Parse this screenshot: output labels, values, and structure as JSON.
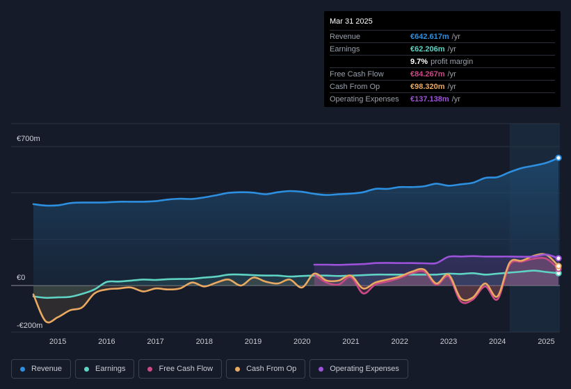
{
  "chart_data": {
    "type": "area",
    "y_unit": "m",
    "ylim": [
      -250,
      750
    ],
    "y_ticks": [
      {
        "value": 700,
        "label": "€700m"
      },
      {
        "value": 0,
        "label": "€0"
      },
      {
        "value": -200,
        "label": "-€200m"
      }
    ],
    "x_ticks": [
      2015,
      2016,
      2017,
      2018,
      2019,
      2020,
      2021,
      2022,
      2023,
      2024,
      2025
    ],
    "xlim": [
      2014.5,
      2025.25
    ],
    "forecast_start": 2024.25,
    "series": [
      {
        "name": "Revenue",
        "color": "#2d8fe0",
        "points": [
          [
            2014.5,
            410
          ],
          [
            2014.75,
            403
          ],
          [
            2015,
            404
          ],
          [
            2015.25,
            415
          ],
          [
            2015.5,
            418
          ],
          [
            2015.75,
            418
          ],
          [
            2016,
            419
          ],
          [
            2016.25,
            422
          ],
          [
            2016.5,
            422
          ],
          [
            2016.75,
            422
          ],
          [
            2017,
            425
          ],
          [
            2017.25,
            433
          ],
          [
            2017.5,
            437
          ],
          [
            2017.75,
            436
          ],
          [
            2018,
            444
          ],
          [
            2018.25,
            455
          ],
          [
            2018.5,
            467
          ],
          [
            2018.75,
            470
          ],
          [
            2019,
            468
          ],
          [
            2019.25,
            460
          ],
          [
            2019.5,
            470
          ],
          [
            2019.75,
            476
          ],
          [
            2020,
            472
          ],
          [
            2020.25,
            462
          ],
          [
            2020.5,
            456
          ],
          [
            2020.75,
            460
          ],
          [
            2021,
            463
          ],
          [
            2021.25,
            470
          ],
          [
            2021.5,
            487
          ],
          [
            2021.75,
            487
          ],
          [
            2022,
            496
          ],
          [
            2022.25,
            496
          ],
          [
            2022.5,
            500
          ],
          [
            2022.75,
            513
          ],
          [
            2023,
            503
          ],
          [
            2023.25,
            510
          ],
          [
            2023.5,
            518
          ],
          [
            2023.75,
            542
          ],
          [
            2024,
            546
          ],
          [
            2024.25,
            571
          ],
          [
            2024.5,
            592
          ],
          [
            2024.75,
            604
          ],
          [
            2025,
            618
          ],
          [
            2025.25,
            643
          ]
        ]
      },
      {
        "name": "Earnings",
        "color": "#5fd3c4",
        "points": [
          [
            2014.5,
            -55
          ],
          [
            2014.75,
            -62
          ],
          [
            2015,
            -60
          ],
          [
            2015.25,
            -57
          ],
          [
            2015.5,
            -42
          ],
          [
            2015.75,
            -20
          ],
          [
            2016,
            18
          ],
          [
            2016.25,
            20
          ],
          [
            2016.5,
            25
          ],
          [
            2016.75,
            30
          ],
          [
            2017,
            28
          ],
          [
            2017.25,
            32
          ],
          [
            2017.5,
            33
          ],
          [
            2017.75,
            34
          ],
          [
            2018,
            40
          ],
          [
            2018.25,
            45
          ],
          [
            2018.5,
            55
          ],
          [
            2018.75,
            55
          ],
          [
            2019,
            52
          ],
          [
            2019.25,
            50
          ],
          [
            2019.5,
            50
          ],
          [
            2019.75,
            45
          ],
          [
            2020,
            48
          ],
          [
            2020.25,
            50
          ],
          [
            2020.5,
            50
          ],
          [
            2020.75,
            48
          ],
          [
            2021,
            50
          ],
          [
            2021.25,
            52
          ],
          [
            2021.5,
            55
          ],
          [
            2021.75,
            55
          ],
          [
            2022,
            55
          ],
          [
            2022.25,
            55
          ],
          [
            2022.5,
            55
          ],
          [
            2022.75,
            55
          ],
          [
            2023,
            60
          ],
          [
            2023.25,
            58
          ],
          [
            2023.5,
            62
          ],
          [
            2023.75,
            55
          ],
          [
            2024,
            60
          ],
          [
            2024.25,
            65
          ],
          [
            2024.5,
            70
          ],
          [
            2024.75,
            75
          ],
          [
            2025,
            68
          ],
          [
            2025.25,
            62
          ]
        ]
      },
      {
        "name": "Free Cash Flow",
        "color": "#c94a86",
        "points": [
          [
            2020.25,
            55
          ],
          [
            2020.5,
            15
          ],
          [
            2020.75,
            5
          ],
          [
            2021,
            42
          ],
          [
            2021.25,
            -40
          ],
          [
            2021.5,
            5
          ],
          [
            2021.75,
            20
          ],
          [
            2022,
            38
          ],
          [
            2022.25,
            62
          ],
          [
            2022.5,
            70
          ],
          [
            2022.75,
            3
          ],
          [
            2023,
            45
          ],
          [
            2023.25,
            -80
          ],
          [
            2023.5,
            -70
          ],
          [
            2023.75,
            -5
          ],
          [
            2024,
            -70
          ],
          [
            2024.25,
            105
          ],
          [
            2024.5,
            120
          ],
          [
            2024.75,
            135
          ],
          [
            2025,
            135
          ],
          [
            2025.25,
            84
          ]
        ]
      },
      {
        "name": "Cash From Op",
        "color": "#e9a960",
        "points": [
          [
            2014.5,
            -45
          ],
          [
            2014.75,
            -180
          ],
          [
            2015,
            -160
          ],
          [
            2015.25,
            -125
          ],
          [
            2015.5,
            -110
          ],
          [
            2015.75,
            -40
          ],
          [
            2016,
            -20
          ],
          [
            2016.25,
            -15
          ],
          [
            2016.5,
            -10
          ],
          [
            2016.75,
            -30
          ],
          [
            2017,
            -15
          ],
          [
            2017.25,
            -20
          ],
          [
            2017.5,
            -15
          ],
          [
            2017.75,
            15
          ],
          [
            2018,
            -5
          ],
          [
            2018.25,
            15
          ],
          [
            2018.5,
            30
          ],
          [
            2018.75,
            0
          ],
          [
            2019,
            40
          ],
          [
            2019.25,
            20
          ],
          [
            2019.5,
            10
          ],
          [
            2019.75,
            30
          ],
          [
            2020,
            -10
          ],
          [
            2020.25,
            60
          ],
          [
            2020.5,
            25
          ],
          [
            2020.75,
            25
          ],
          [
            2021,
            50
          ],
          [
            2021.25,
            -15
          ],
          [
            2021.5,
            15
          ],
          [
            2021.75,
            30
          ],
          [
            2022,
            45
          ],
          [
            2022.25,
            70
          ],
          [
            2022.5,
            80
          ],
          [
            2022.75,
            10
          ],
          [
            2023,
            55
          ],
          [
            2023.25,
            -65
          ],
          [
            2023.5,
            -60
          ],
          [
            2023.75,
            10
          ],
          [
            2024,
            -55
          ],
          [
            2024.25,
            115
          ],
          [
            2024.5,
            125
          ],
          [
            2024.75,
            150
          ],
          [
            2025,
            155
          ],
          [
            2025.25,
            98
          ]
        ]
      },
      {
        "name": "Operating Expenses",
        "color": "#9d53d9",
        "points": [
          [
            2020.25,
            105
          ],
          [
            2020.5,
            105
          ],
          [
            2020.75,
            104
          ],
          [
            2021,
            106
          ],
          [
            2021.25,
            108
          ],
          [
            2021.5,
            113
          ],
          [
            2021.75,
            114
          ],
          [
            2022,
            113
          ],
          [
            2022.25,
            113
          ],
          [
            2022.5,
            112
          ],
          [
            2022.75,
            113
          ],
          [
            2023,
            145
          ],
          [
            2023.25,
            146
          ],
          [
            2023.5,
            148
          ],
          [
            2023.75,
            146
          ],
          [
            2024,
            146
          ],
          [
            2024.25,
            146
          ],
          [
            2024.5,
            145
          ],
          [
            2024.75,
            146
          ],
          [
            2025,
            156
          ],
          [
            2025.25,
            137
          ]
        ]
      }
    ]
  },
  "tooltip": {
    "date": "Mar 31 2025",
    "rows": [
      {
        "label": "Revenue",
        "value": "€642.617m",
        "unit": "/yr",
        "color": "#2d8fe0"
      },
      {
        "label": "Earnings",
        "value": "€62.206m",
        "unit": "/yr",
        "color": "#5fd3c4"
      },
      {
        "label": "",
        "value": "9.7%",
        "unit": "profit margin",
        "color": "#ffffff"
      },
      {
        "label": "Free Cash Flow",
        "value": "€84.267m",
        "unit": "/yr",
        "color": "#c94a86"
      },
      {
        "label": "Cash From Op",
        "value": "€98.320m",
        "unit": "/yr",
        "color": "#e9a960"
      },
      {
        "label": "Operating Expenses",
        "value": "€137.138m",
        "unit": "/yr",
        "color": "#9d53d9"
      }
    ]
  },
  "legend": [
    {
      "label": "Revenue",
      "color": "#2d8fe0"
    },
    {
      "label": "Earnings",
      "color": "#5fd3c4"
    },
    {
      "label": "Free Cash Flow",
      "color": "#c94a86"
    },
    {
      "label": "Cash From Op",
      "color": "#e9a960"
    },
    {
      "label": "Operating Expenses",
      "color": "#9d53d9"
    }
  ]
}
